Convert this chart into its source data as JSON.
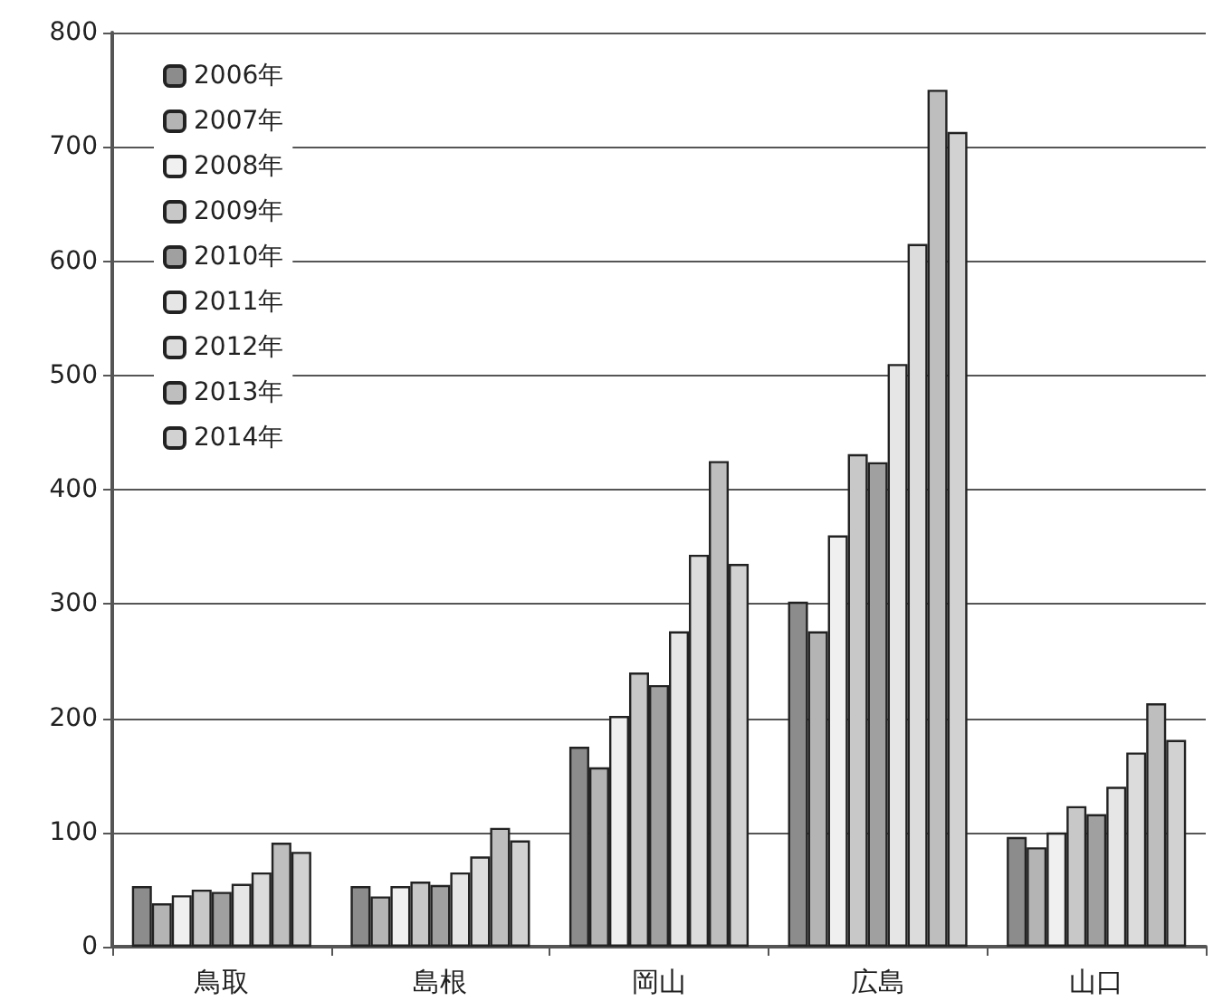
{
  "chart_data": {
    "type": "bar",
    "categories": [
      "鳥取",
      "島根",
      "岡山",
      "広島",
      "山口"
    ],
    "series": [
      {
        "name": "2006年",
        "color": "#8c8c8c",
        "values": [
          53,
          53,
          175,
          302,
          96
        ]
      },
      {
        "name": "2007年",
        "color": "#b4b4b4",
        "values": [
          38,
          44,
          157,
          276,
          87
        ]
      },
      {
        "name": "2008年",
        "color": "#f0f0f0",
        "values": [
          45,
          53,
          202,
          360,
          100
        ]
      },
      {
        "name": "2009年",
        "color": "#c8c8c8",
        "values": [
          50,
          57,
          240,
          431,
          123
        ]
      },
      {
        "name": "2010年",
        "color": "#a0a0a0",
        "values": [
          48,
          54,
          229,
          424,
          116
        ]
      },
      {
        "name": "2011年",
        "color": "#e6e6e6",
        "values": [
          55,
          65,
          276,
          510,
          140
        ]
      },
      {
        "name": "2012年",
        "color": "#dcdcdc",
        "values": [
          65,
          79,
          343,
          615,
          170
        ]
      },
      {
        "name": "2013年",
        "color": "#bebebe",
        "values": [
          91,
          104,
          425,
          750,
          213
        ]
      },
      {
        "name": "2014年",
        "color": "#d2d2d2",
        "values": [
          83,
          93,
          335,
          713,
          181
        ]
      }
    ],
    "ylim": [
      0,
      800
    ],
    "yticks": [
      0,
      100,
      200,
      300,
      400,
      500,
      600,
      700,
      800
    ],
    "grid": "y",
    "legend": "top left"
  }
}
